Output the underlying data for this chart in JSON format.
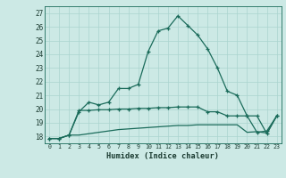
{
  "xlabel": "Humidex (Indice chaleur)",
  "bg_color": "#cce9e5",
  "grid_color": "#aad4cf",
  "line_color": "#1a6b5a",
  "x_values": [
    0,
    1,
    2,
    3,
    4,
    5,
    6,
    7,
    8,
    9,
    10,
    11,
    12,
    13,
    14,
    15,
    16,
    17,
    18,
    19,
    20,
    21,
    22,
    23
  ],
  "line1": [
    17.85,
    17.85,
    18.1,
    19.8,
    20.5,
    20.3,
    20.5,
    21.5,
    21.5,
    21.8,
    24.2,
    25.7,
    25.9,
    26.8,
    26.1,
    25.4,
    24.4,
    23.0,
    21.3,
    21.0,
    19.5,
    19.5,
    18.2,
    19.5
  ],
  "line2": [
    17.85,
    17.85,
    18.1,
    19.9,
    19.9,
    19.95,
    19.95,
    20.0,
    20.0,
    20.05,
    20.05,
    20.1,
    20.1,
    20.15,
    20.15,
    20.15,
    19.8,
    19.8,
    19.5,
    19.5,
    19.5,
    18.3,
    18.4,
    19.5
  ],
  "line3": [
    17.85,
    17.85,
    18.1,
    18.1,
    18.2,
    18.3,
    18.4,
    18.5,
    18.55,
    18.6,
    18.65,
    18.7,
    18.75,
    18.8,
    18.8,
    18.85,
    18.85,
    18.85,
    18.85,
    18.85,
    18.3,
    18.35,
    18.25,
    19.5
  ],
  "ylim": [
    17.5,
    27.5
  ],
  "yticks": [
    18,
    19,
    20,
    21,
    22,
    23,
    24,
    25,
    26,
    27
  ],
  "xticks": [
    0,
    1,
    2,
    3,
    4,
    5,
    6,
    7,
    8,
    9,
    10,
    11,
    12,
    13,
    14,
    15,
    16,
    17,
    18,
    19,
    20,
    21,
    22,
    23
  ],
  "xlim": [
    -0.5,
    23.5
  ]
}
